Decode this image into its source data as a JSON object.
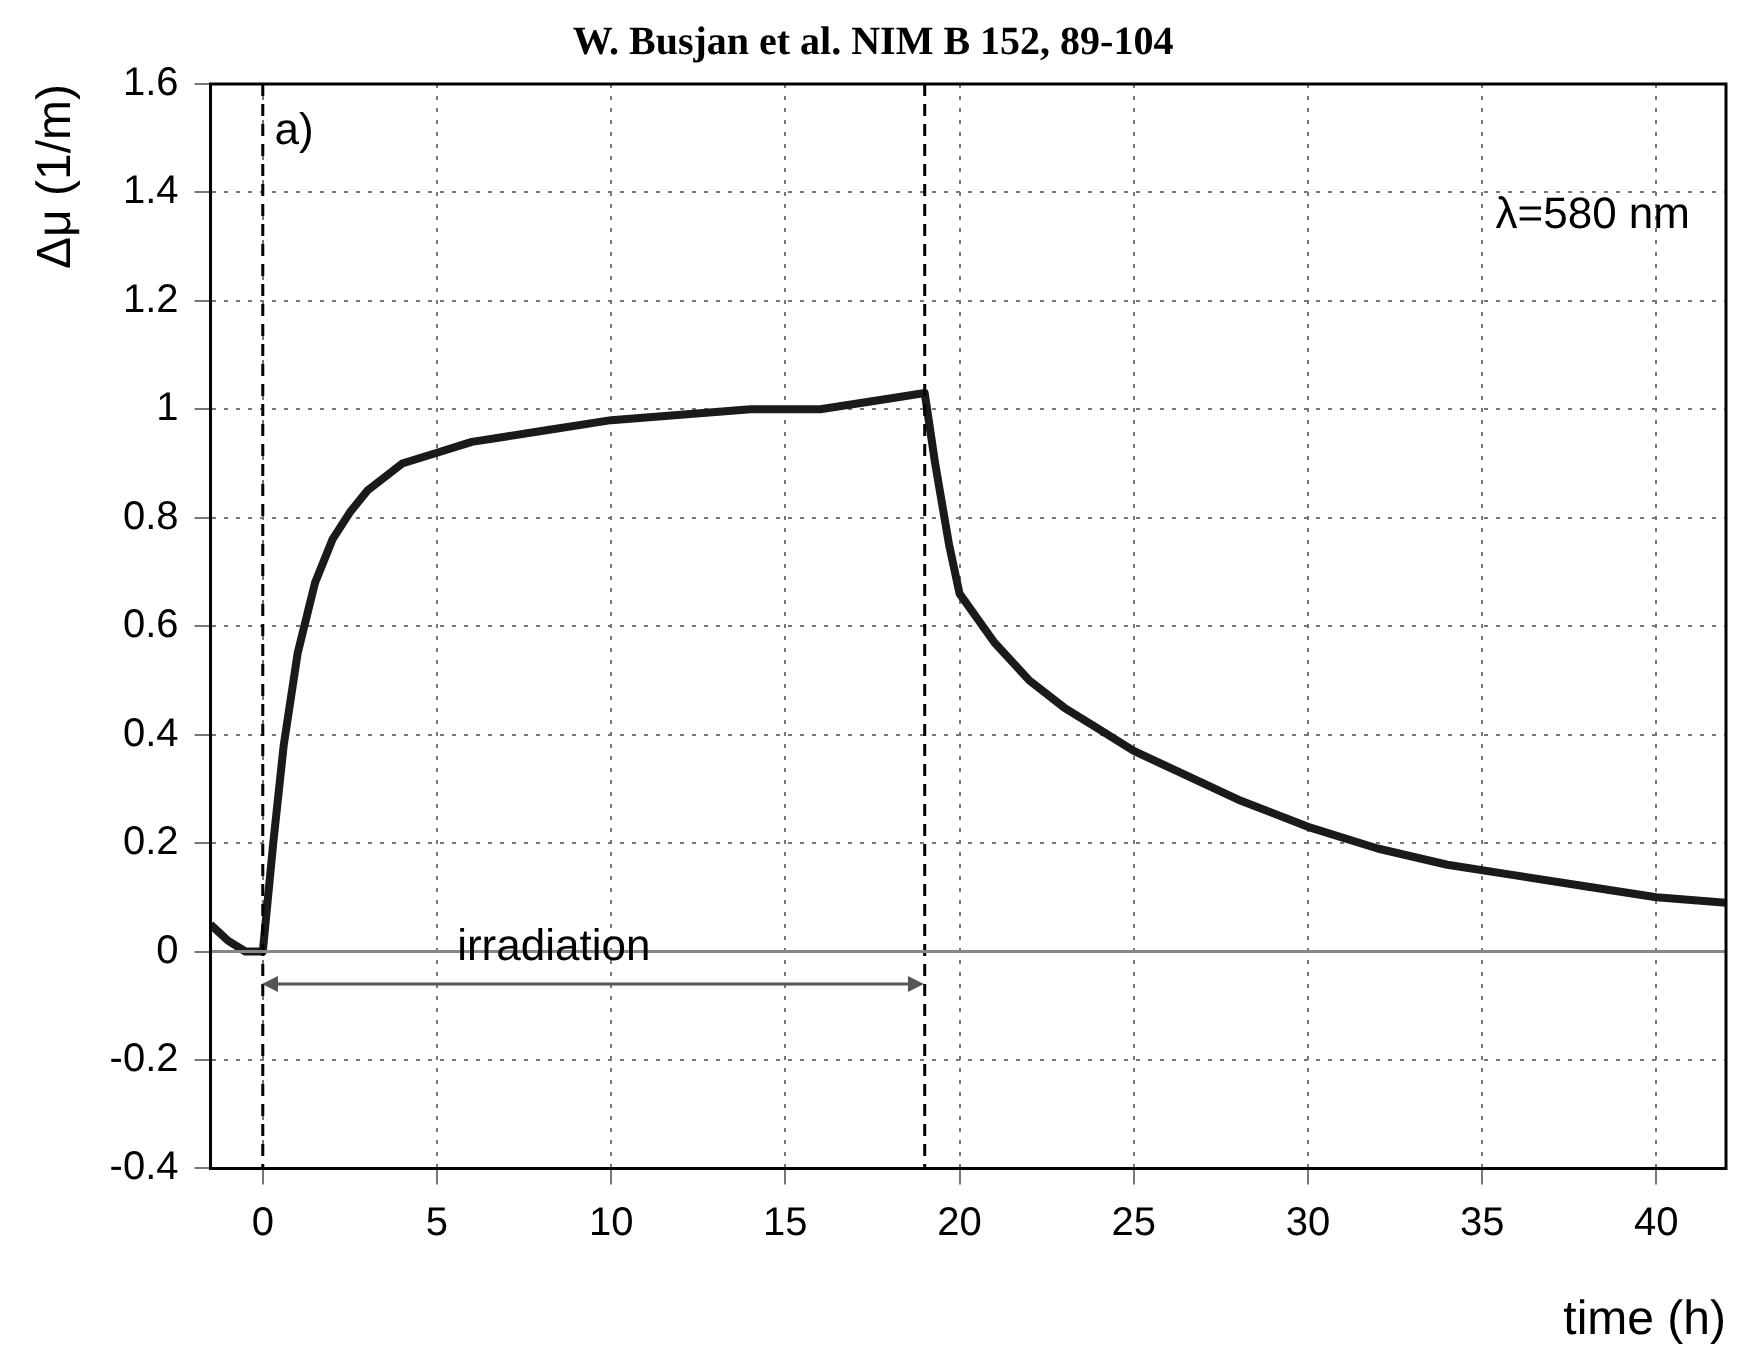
{
  "chart_data": {
    "type": "line",
    "title": "W. Busjan et al. NIM B 152, 89-104",
    "xlabel": "time (h)",
    "ylabel": "Δμ (1/m)",
    "x": [
      -1.5,
      -1,
      -0.5,
      0,
      0.3,
      0.6,
      1,
      1.5,
      2,
      2.5,
      3,
      4,
      5,
      6,
      7,
      8,
      10,
      12,
      14,
      16,
      18,
      19,
      19.3,
      19.7,
      20,
      21,
      22,
      23,
      24,
      25,
      26,
      27,
      28,
      30,
      32,
      34,
      36,
      38,
      40,
      42
    ],
    "series": [
      {
        "color": "#1a1a1a",
        "values": [
          0.05,
          0.02,
          0,
          0,
          0.2,
          0.38,
          0.55,
          0.68,
          0.76,
          0.81,
          0.85,
          0.9,
          0.92,
          0.94,
          0.95,
          0.96,
          0.98,
          0.99,
          1,
          1,
          1.02,
          1.03,
          0.9,
          0.75,
          0.66,
          0.57,
          0.5,
          0.45,
          0.41,
          0.37,
          0.34,
          0.31,
          0.28,
          0.23,
          0.19,
          0.16,
          0.14,
          0.12,
          0.1,
          0.09
        ]
      }
    ],
    "xlim": [
      -1.5,
      42
    ],
    "xticks": [
      0,
      5,
      10,
      15,
      20,
      25,
      30,
      35,
      40
    ],
    "ylim": [
      -0.4,
      1.6
    ],
    "yticks": [
      -0.4,
      -0.2,
      0,
      0.2,
      0.4,
      0.6,
      0.8,
      1,
      1.2,
      1.4,
      1.6
    ],
    "ref_lines": [
      {
        "axis": "x",
        "value": 0,
        "color": "#000000",
        "line_style": "dashed"
      },
      {
        "axis": "x",
        "value": 19,
        "color": "#000000",
        "line_style": "dashed"
      },
      {
        "axis": "y",
        "value": 0,
        "color": "#888888",
        "line_style": "solid"
      }
    ],
    "annotations": [
      "a)",
      "λ=580 nm",
      "irradiation"
    ],
    "grid": true,
    "legend": false,
    "marker": "none",
    "line_style": "solid"
  }
}
